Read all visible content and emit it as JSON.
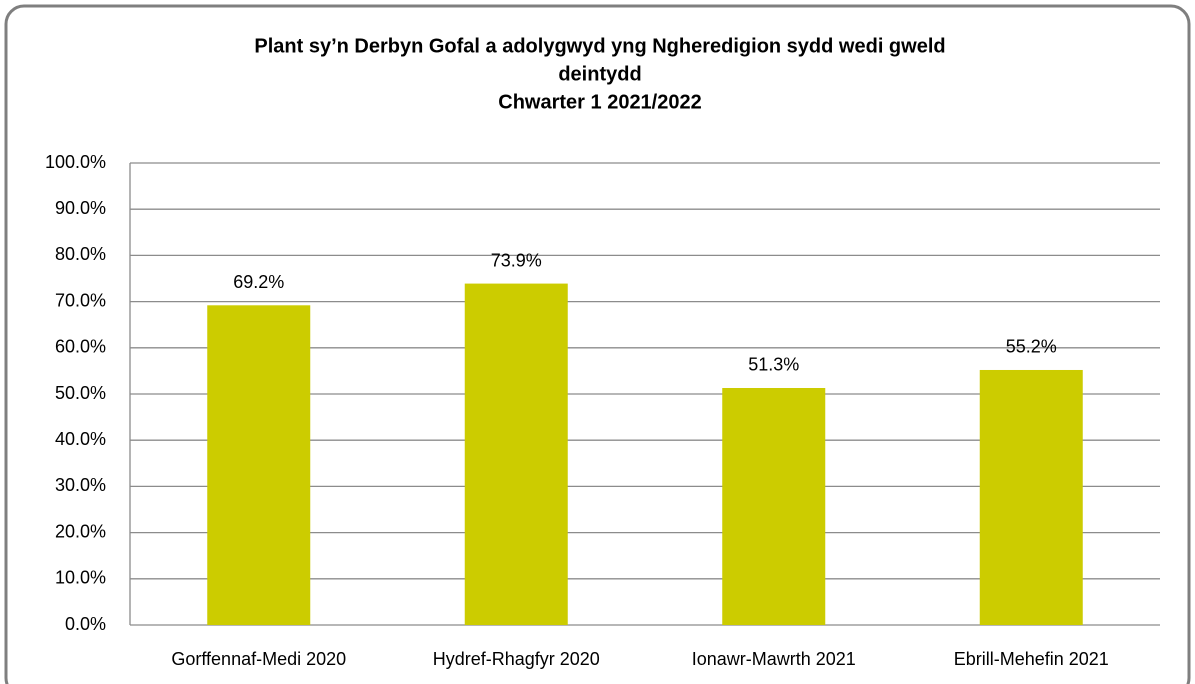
{
  "chart_data": {
    "type": "bar",
    "title": [
      "Plant sy’n Derbyn Gofal a adolygwyd yng Ngheredigion sydd wedi gweld",
      "deintydd",
      "Chwarter 1  2021/2022"
    ],
    "categories": [
      "Gorffennaf-Medi 2020",
      "Hydref-Rhagfyr 2020",
      "Ionawr-Mawrth 2021",
      "Ebrill-Mehefin 2021"
    ],
    "values": [
      69.2,
      73.9,
      51.3,
      55.2
    ],
    "value_labels": [
      "69.2%",
      "73.9%",
      "51.3%",
      "55.2%"
    ],
    "color": "#cccc00",
    "ylim": [
      0,
      100
    ],
    "yticks": [
      {
        "value": 0,
        "label": "0.0%"
      },
      {
        "value": 10,
        "label": "10.0%"
      },
      {
        "value": 20,
        "label": "20.0%"
      },
      {
        "value": 30,
        "label": "30.0%"
      },
      {
        "value": 40,
        "label": "40.0%"
      },
      {
        "value": 50,
        "label": "50.0%"
      },
      {
        "value": 60,
        "label": "60.0%"
      },
      {
        "value": 70,
        "label": "70.0%"
      },
      {
        "value": 80,
        "label": "80.0%"
      },
      {
        "value": 90,
        "label": "90.0%"
      },
      {
        "value": 100,
        "label": "100.0%"
      }
    ],
    "grid": true
  }
}
